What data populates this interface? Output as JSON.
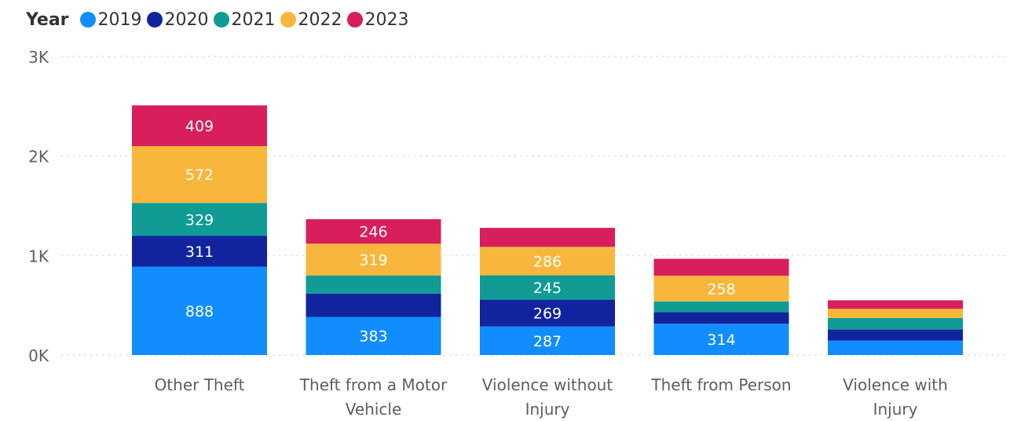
{
  "chart_data": {
    "type": "bar",
    "stacked": true,
    "legend_title": "Year",
    "legend_position": "top-left",
    "categories": [
      [
        "Other Theft"
      ],
      [
        "Theft from a Motor",
        "Vehicle"
      ],
      [
        "Violence without",
        "Injury"
      ],
      [
        "Theft from Person"
      ],
      [
        "Violence with",
        "Injury"
      ]
    ],
    "series": [
      {
        "name": "2019",
        "color": "#118DFF",
        "values": [
          888,
          383,
          287,
          314,
          145
        ]
      },
      {
        "name": "2020",
        "color": "#12239E",
        "values": [
          311,
          234,
          269,
          117,
          111
        ]
      },
      {
        "name": "2021",
        "color": "#109B94",
        "values": [
          329,
          183,
          245,
          108,
          115
        ]
      },
      {
        "name": "2022",
        "color": "#F8B73C",
        "values": [
          572,
          319,
          286,
          258,
          94
        ]
      },
      {
        "name": "2023",
        "color": "#D81E5B",
        "values": [
          409,
          246,
          191,
          170,
          85
        ]
      }
    ],
    "data_labels": [
      [
        true,
        true,
        true,
        true,
        true
      ],
      [
        true,
        false,
        false,
        true,
        true
      ],
      [
        true,
        true,
        true,
        true,
        false
      ],
      [
        true,
        false,
        false,
        true,
        false
      ],
      [
        false,
        false,
        false,
        false,
        false
      ]
    ],
    "yticks": [
      0,
      1000,
      2000,
      3000
    ],
    "ytick_labels": [
      "0K",
      "1K",
      "2K",
      "3K"
    ],
    "ylim": [
      0,
      3000
    ],
    "grid": true
  }
}
